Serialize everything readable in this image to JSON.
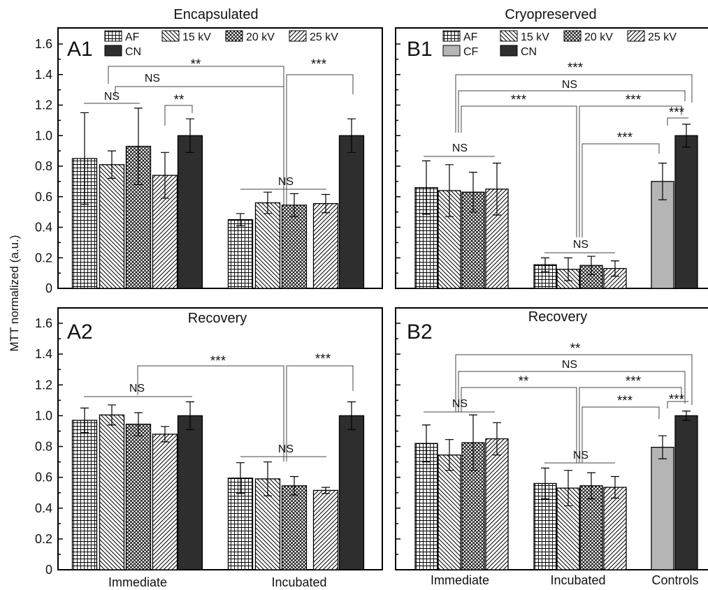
{
  "figure": {
    "ylabel": "MTT normalized (a.u.)",
    "yticks": [
      "0",
      "0.2",
      "0.4",
      "0.6",
      "0.8",
      "1.0",
      "1.2",
      "1.4",
      "1.6"
    ]
  },
  "colors": {
    "cf": "#b5b5b5",
    "cn": "#2e2e2e",
    "patterned": "#ffffff"
  },
  "chart_data": [
    {
      "id": "A1",
      "type": "bar",
      "panel_label": "A1",
      "title": "Encapsulated",
      "ylim": [
        0,
        1.7
      ],
      "legend": [
        "AF",
        "15 kV",
        "20 kV",
        "25 kV",
        "CN"
      ],
      "groups": [
        "Immediate",
        "Incubated"
      ],
      "bars": [
        {
          "group": "Immediate",
          "series": "AF",
          "value": 0.85,
          "err": 0.3
        },
        {
          "group": "Immediate",
          "series": "15 kV",
          "value": 0.81,
          "err": 0.09
        },
        {
          "group": "Immediate",
          "series": "20 kV",
          "value": 0.93,
          "err": 0.25
        },
        {
          "group": "Immediate",
          "series": "25 kV",
          "value": 0.74,
          "err": 0.15
        },
        {
          "group": "Immediate",
          "series": "CN",
          "value": 1.0,
          "err": 0.11
        },
        {
          "group": "Incubated",
          "series": "AF",
          "value": 0.45,
          "err": 0.04
        },
        {
          "group": "Incubated",
          "series": "15 kV",
          "value": 0.56,
          "err": 0.07
        },
        {
          "group": "Incubated",
          "series": "20 kV",
          "value": 0.545,
          "err": 0.075
        },
        {
          "group": "Incubated",
          "series": "25 kV",
          "value": 0.555,
          "err": 0.06
        },
        {
          "group": "Incubated",
          "series": "CN",
          "value": 1.0,
          "err": 0.11
        }
      ],
      "annotations": [
        "**",
        "NS",
        "***",
        "NS",
        "**",
        "NS"
      ]
    },
    {
      "id": "B1",
      "type": "bar",
      "panel_label": "B1",
      "title": "Cryopreserved",
      "ylim": [
        0,
        1.7
      ],
      "legend": [
        "AF",
        "15 kV",
        "20 kV",
        "25 kV",
        "CF",
        "CN"
      ],
      "groups": [
        "Immediate",
        "Incubated",
        "Controls"
      ],
      "bars": [
        {
          "group": "Immediate",
          "series": "AF",
          "value": 0.66,
          "err": 0.175
        },
        {
          "group": "Immediate",
          "series": "15 kV",
          "value": 0.64,
          "err": 0.17
        },
        {
          "group": "Immediate",
          "series": "20 kV",
          "value": 0.63,
          "err": 0.13
        },
        {
          "group": "Immediate",
          "series": "25 kV",
          "value": 0.65,
          "err": 0.17
        },
        {
          "group": "Incubated",
          "series": "AF",
          "value": 0.155,
          "err": 0.045
        },
        {
          "group": "Incubated",
          "series": "15 kV",
          "value": 0.125,
          "err": 0.075
        },
        {
          "group": "Incubated",
          "series": "20 kV",
          "value": 0.15,
          "err": 0.06
        },
        {
          "group": "Incubated",
          "series": "25 kV",
          "value": 0.13,
          "err": 0.05
        },
        {
          "group": "Controls",
          "series": "CF",
          "value": 0.7,
          "err": 0.12
        },
        {
          "group": "Controls",
          "series": "CN",
          "value": 1.0,
          "err": 0.075
        }
      ],
      "annotations": [
        "***",
        "NS",
        "***",
        "***",
        "***",
        "***",
        "NS",
        "NS"
      ]
    },
    {
      "id": "A2",
      "type": "bar",
      "panel_label": "A2",
      "title": "Recovery",
      "ylim": [
        0,
        1.7
      ],
      "groups": [
        "Immediate",
        "Incubated"
      ],
      "bars": [
        {
          "group": "Immediate",
          "series": "AF",
          "value": 0.97,
          "err": 0.08
        },
        {
          "group": "Immediate",
          "series": "15 kV",
          "value": 1.005,
          "err": 0.065
        },
        {
          "group": "Immediate",
          "series": "20 kV",
          "value": 0.945,
          "err": 0.075
        },
        {
          "group": "Immediate",
          "series": "25 kV",
          "value": 0.88,
          "err": 0.05
        },
        {
          "group": "Immediate",
          "series": "CN",
          "value": 1.0,
          "err": 0.09
        },
        {
          "group": "Incubated",
          "series": "AF",
          "value": 0.595,
          "err": 0.1
        },
        {
          "group": "Incubated",
          "series": "15 kV",
          "value": 0.59,
          "err": 0.11
        },
        {
          "group": "Incubated",
          "series": "20 kV",
          "value": 0.545,
          "err": 0.06
        },
        {
          "group": "Incubated",
          "series": "25 kV",
          "value": 0.515,
          "err": 0.02
        },
        {
          "group": "Incubated",
          "series": "CN",
          "value": 1.0,
          "err": 0.09
        }
      ],
      "annotations": [
        "***",
        "***",
        "NS",
        "NS"
      ]
    },
    {
      "id": "B2",
      "type": "bar",
      "panel_label": "B2",
      "title": "Recovery",
      "ylim": [
        0,
        1.7
      ],
      "groups": [
        "Immediate",
        "Incubated",
        "Controls"
      ],
      "bars": [
        {
          "group": "Immediate",
          "series": "AF",
          "value": 0.82,
          "err": 0.12
        },
        {
          "group": "Immediate",
          "series": "15 kV",
          "value": 0.745,
          "err": 0.1
        },
        {
          "group": "Immediate",
          "series": "20 kV",
          "value": 0.825,
          "err": 0.18
        },
        {
          "group": "Immediate",
          "series": "25 kV",
          "value": 0.85,
          "err": 0.105
        },
        {
          "group": "Incubated",
          "series": "AF",
          "value": 0.56,
          "err": 0.1
        },
        {
          "group": "Incubated",
          "series": "15 kV",
          "value": 0.53,
          "err": 0.115
        },
        {
          "group": "Incubated",
          "series": "20 kV",
          "value": 0.545,
          "err": 0.085
        },
        {
          "group": "Incubated",
          "series": "25 kV",
          "value": 0.535,
          "err": 0.07
        },
        {
          "group": "Controls",
          "series": "CF",
          "value": 0.795,
          "err": 0.075
        },
        {
          "group": "Controls",
          "series": "CN",
          "value": 1.0,
          "err": 0.03
        }
      ],
      "annotations": [
        "**",
        "NS",
        "**",
        "***",
        "***",
        "***",
        "NS",
        "NS"
      ]
    }
  ]
}
